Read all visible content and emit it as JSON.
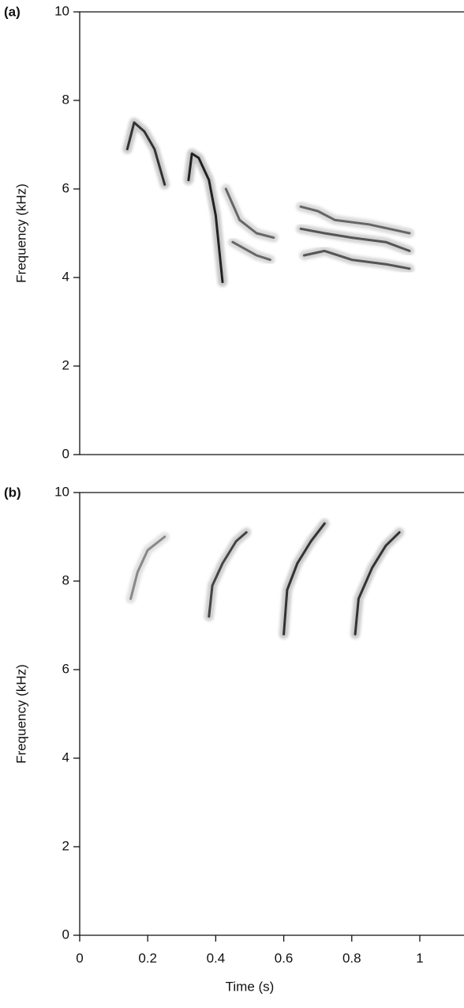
{
  "chart_data": [
    {
      "type": "spectrogram",
      "label": "(a)",
      "ylabel": "Frequency (kHz)",
      "xlim": [
        0,
        1.13
      ],
      "ylim": [
        0,
        10
      ],
      "yticks": [
        0,
        2,
        4,
        6,
        8,
        10
      ],
      "series": [
        {
          "color": "#333333",
          "x": [
            0.14,
            0.16,
            0.19,
            0.22,
            0.25
          ],
          "values": [
            6.9,
            7.5,
            7.3,
            6.9,
            6.1
          ]
        },
        {
          "color": "#222222",
          "x": [
            0.32,
            0.33,
            0.35,
            0.38,
            0.4,
            0.42
          ],
          "values": [
            6.2,
            6.8,
            6.7,
            6.2,
            5.4,
            3.9
          ]
        },
        {
          "color": "#666666",
          "x": [
            0.43,
            0.47,
            0.52,
            0.57
          ],
          "values": [
            6.0,
            5.3,
            5.0,
            4.9
          ]
        },
        {
          "color": "#666666",
          "x": [
            0.45,
            0.52,
            0.56
          ],
          "values": [
            4.8,
            4.5,
            4.4
          ]
        },
        {
          "color": "#666666",
          "x": [
            0.65,
            0.7,
            0.75,
            0.85,
            0.97
          ],
          "values": [
            5.6,
            5.5,
            5.3,
            5.2,
            5.0
          ]
        },
        {
          "color": "#555555",
          "x": [
            0.65,
            0.72,
            0.8,
            0.9,
            0.97
          ],
          "values": [
            5.1,
            5.0,
            4.9,
            4.8,
            4.6
          ]
        },
        {
          "color": "#555555",
          "x": [
            0.66,
            0.72,
            0.8,
            0.9,
            0.97
          ],
          "values": [
            4.5,
            4.6,
            4.4,
            4.3,
            4.2
          ]
        }
      ]
    },
    {
      "type": "spectrogram",
      "label": "(b)",
      "ylabel": "Frequency (kHz)",
      "xlabel": "Time (s)",
      "xlim": [
        0,
        1.13
      ],
      "ylim": [
        0,
        10
      ],
      "yticks": [
        0,
        2,
        4,
        6,
        8,
        10
      ],
      "xticks": [
        0,
        0.2,
        0.4,
        0.6,
        0.8,
        1
      ],
      "series": [
        {
          "color": "#888888",
          "x": [
            0.15,
            0.17,
            0.2,
            0.25
          ],
          "values": [
            7.6,
            8.2,
            8.7,
            9.0
          ]
        },
        {
          "color": "#444444",
          "x": [
            0.38,
            0.39,
            0.42,
            0.46,
            0.49
          ],
          "values": [
            7.2,
            7.9,
            8.4,
            8.9,
            9.1
          ]
        },
        {
          "color": "#333333",
          "x": [
            0.6,
            0.61,
            0.64,
            0.68,
            0.72
          ],
          "values": [
            6.8,
            7.8,
            8.4,
            8.9,
            9.3
          ]
        },
        {
          "color": "#333333",
          "x": [
            0.81,
            0.82,
            0.86,
            0.9,
            0.94
          ],
          "values": [
            6.8,
            7.6,
            8.3,
            8.8,
            9.1
          ]
        }
      ]
    }
  ]
}
